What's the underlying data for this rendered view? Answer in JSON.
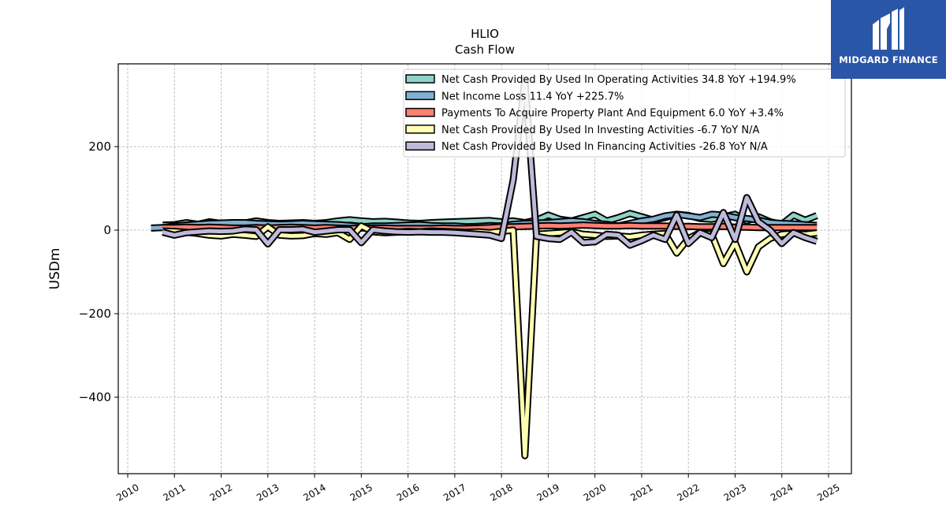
{
  "brand": {
    "name": "MIDGARD FINANCE",
    "bg_color": "#2a56a8"
  },
  "chart_data": {
    "type": "line",
    "title": "HLIO",
    "subtitle": "Cash Flow",
    "ylabel": "USDm",
    "xlabel": "",
    "xlim": [
      2010.0,
      2025.0
    ],
    "ylim": [
      -580,
      395
    ],
    "x_ticks": [
      "2010",
      "2011",
      "2012",
      "2013",
      "2014",
      "2015",
      "2016",
      "2017",
      "2018",
      "2019",
      "2020",
      "2021",
      "2022",
      "2023",
      "2024",
      "2025"
    ],
    "y_ticks": [
      200,
      0,
      -200,
      -400
    ],
    "y_tick_labels": [
      "200",
      "0",
      "−200",
      "−400"
    ],
    "grid": true,
    "legend_position": "top-right",
    "series": [
      {
        "name": "Net Cash Provided By Used In Operating Activities",
        "legend": "Net Cash Provided By Used In Operating Activities  34.8 YoY +194.9%",
        "color": "#8dd3c7",
        "x": [
          2010.75,
          2011.0,
          2011.25,
          2011.5,
          2011.75,
          2012.0,
          2012.25,
          2012.5,
          2012.75,
          2013.0,
          2013.25,
          2013.5,
          2013.75,
          2014.0,
          2014.25,
          2014.5,
          2014.75,
          2015.0,
          2015.25,
          2015.5,
          2015.75,
          2016.0,
          2016.25,
          2016.5,
          2016.75,
          2017.0,
          2017.25,
          2017.5,
          2017.75,
          2018.0,
          2018.25,
          2018.5,
          2018.75,
          2019.0,
          2019.25,
          2019.5,
          2019.75,
          2020.0,
          2020.25,
          2020.5,
          2020.75,
          2021.0,
          2021.25,
          2021.5,
          2021.75,
          2022.0,
          2022.25,
          2022.5,
          2022.75,
          2023.0,
          2023.25,
          2023.5,
          2023.75,
          2024.0,
          2024.25,
          2024.5,
          2024.75
        ],
        "values": [
          12,
          13,
          18,
          14,
          20,
          16,
          18,
          17,
          22,
          18,
          16,
          17,
          18,
          16,
          18,
          22,
          25,
          22,
          20,
          21,
          19,
          17,
          16,
          18,
          19,
          20,
          21,
          22,
          23,
          20,
          22,
          18,
          24,
          36,
          26,
          22,
          30,
          38,
          22,
          30,
          40,
          32,
          24,
          30,
          38,
          35,
          28,
          26,
          32,
          38,
          22,
          32,
          20,
          14,
          36,
          24,
          34.8
        ]
      },
      {
        "name": "Net Income Loss",
        "legend": "Net Income Loss  11.4 YoY +225.7%",
        "color": "#80b1d3",
        "x": [
          2010.5,
          2010.75,
          2011.0,
          2011.25,
          2011.5,
          2011.75,
          2012.0,
          2012.25,
          2012.5,
          2012.75,
          2013.0,
          2013.25,
          2013.5,
          2013.75,
          2014.0,
          2014.25,
          2014.5,
          2014.75,
          2015.0,
          2015.25,
          2015.5,
          2015.75,
          2016.0,
          2016.25,
          2016.5,
          2016.75,
          2017.0,
          2017.25,
          2017.5,
          2017.75,
          2018.0,
          2018.25,
          2018.5,
          2018.75,
          2019.0,
          2019.25,
          2019.5,
          2019.75,
          2020.0,
          2020.25,
          2020.5,
          2020.75,
          2021.0,
          2021.25,
          2021.5,
          2021.75,
          2022.0,
          2022.25,
          2022.5,
          2022.75,
          2023.0,
          2023.25,
          2023.5,
          2023.75,
          2024.0,
          2024.25,
          2024.5,
          2024.75
        ],
        "values": [
          5,
          6,
          10,
          12,
          14,
          16,
          17,
          18,
          18,
          16,
          15,
          14,
          15,
          16,
          15,
          14,
          13,
          11,
          8,
          10,
          10,
          11,
          12,
          13,
          11,
          10,
          10,
          8,
          9,
          11,
          10,
          14,
          16,
          17,
          18,
          20,
          22,
          20,
          16,
          14,
          10,
          16,
          22,
          26,
          34,
          38,
          34,
          30,
          38,
          36,
          30,
          28,
          24,
          18,
          16,
          15,
          13,
          11.4
        ]
      },
      {
        "name": "Payments To Acquire Property Plant And Equipment",
        "legend": "Payments To Acquire Property Plant And Equipment  6.0 YoY +3.4%",
        "color": "#fb8072",
        "x": [
          2010.75,
          2011.0,
          2011.25,
          2011.5,
          2011.75,
          2012.0,
          2012.25,
          2012.5,
          2012.75,
          2013.0,
          2013.25,
          2013.5,
          2013.75,
          2014.0,
          2014.25,
          2014.5,
          2014.75,
          2015.0,
          2015.25,
          2015.5,
          2015.75,
          2016.0,
          2016.25,
          2016.5,
          2016.75,
          2017.0,
          2017.25,
          2017.5,
          2017.75,
          2018.0,
          2018.25,
          2018.5,
          2018.75,
          2019.0,
          2019.25,
          2019.5,
          2019.75,
          2020.0,
          2020.25,
          2020.5,
          2020.75,
          2021.0,
          2021.25,
          2021.5,
          2021.75,
          2022.0,
          2022.25,
          2022.5,
          2022.75,
          2023.0,
          2023.25,
          2023.5,
          2023.75,
          2024.0,
          2024.25,
          2024.5,
          2024.75
        ],
        "values": [
          6,
          6,
          7,
          6,
          7,
          6,
          5,
          5,
          6,
          5,
          6,
          7,
          6,
          5,
          6,
          5,
          4,
          5,
          5,
          5,
          4,
          4,
          4,
          4,
          5,
          4,
          4,
          5,
          6,
          8,
          8,
          9,
          10,
          11,
          10,
          11,
          12,
          11,
          10,
          10,
          11,
          10,
          10,
          10,
          9,
          9,
          8,
          8,
          9,
          7,
          7,
          6,
          6,
          6,
          6,
          6,
          6.0
        ]
      },
      {
        "name": "Net Cash Provided By Used In Investing Activities",
        "legend": "Net Cash Provided By Used In Investing Activities  -6.7 YoY N/A",
        "color": "#ffffb3",
        "x": [
          2010.75,
          2011.0,
          2011.25,
          2011.5,
          2011.75,
          2012.0,
          2012.25,
          2012.5,
          2012.75,
          2013.0,
          2013.25,
          2013.5,
          2013.75,
          2014.0,
          2014.25,
          2014.5,
          2014.75,
          2015.0,
          2015.25,
          2015.5,
          2015.75,
          2016.0,
          2016.25,
          2016.5,
          2016.75,
          2017.0,
          2017.25,
          2017.5,
          2017.75,
          2018.0,
          2018.25,
          2018.5,
          2018.75,
          2019.0,
          2019.25,
          2019.5,
          2019.75,
          2020.0,
          2020.25,
          2020.5,
          2020.75,
          2021.0,
          2021.25,
          2021.5,
          2021.75,
          2022.0,
          2022.25,
          2022.5,
          2022.75,
          2023.0,
          2023.25,
          2023.5,
          2023.75,
          2024.0,
          2024.25,
          2024.5,
          2024.75
        ],
        "values": [
          -2,
          -3,
          -5,
          -8,
          -12,
          -14,
          -10,
          -12,
          -15,
          8,
          -12,
          -14,
          -13,
          -8,
          -10,
          -6,
          -22,
          10,
          -4,
          -6,
          -5,
          -3,
          -4,
          -2,
          -3,
          -4,
          -5,
          -4,
          -6,
          -3,
          0,
          -540,
          -10,
          -8,
          -6,
          -4,
          -10,
          -12,
          -15,
          -14,
          -16,
          -12,
          -10,
          -8,
          -55,
          -20,
          -6,
          -10,
          -80,
          -30,
          -100,
          -40,
          -20,
          -10,
          -8,
          -10,
          -6.7
        ]
      },
      {
        "name": "Net Cash Provided By Used In Financing Activities",
        "legend": "Net Cash Provided By Used In Financing Activities  -26.8 YoY N/A",
        "color": "#bebada",
        "x": [
          2010.75,
          2011.0,
          2011.25,
          2011.5,
          2011.75,
          2012.0,
          2012.25,
          2012.5,
          2012.75,
          2013.0,
          2013.25,
          2013.5,
          2013.75,
          2014.0,
          2014.25,
          2014.5,
          2014.75,
          2015.0,
          2015.25,
          2015.5,
          2015.75,
          2016.0,
          2016.25,
          2016.5,
          2016.75,
          2017.0,
          2017.25,
          2017.5,
          2017.75,
          2018.0,
          2018.25,
          2018.5,
          2018.75,
          2019.0,
          2019.25,
          2019.5,
          2019.75,
          2020.0,
          2020.25,
          2020.5,
          2020.75,
          2021.0,
          2021.25,
          2021.5,
          2021.75,
          2022.0,
          2022.25,
          2022.5,
          2022.75,
          2023.0,
          2023.25,
          2023.5,
          2023.75,
          2024.0,
          2024.25,
          2024.5,
          2024.75
        ],
        "values": [
          -5,
          -12,
          -6,
          -4,
          -2,
          -3,
          -2,
          2,
          1,
          -33,
          1,
          1,
          2,
          -5,
          -2,
          1,
          1,
          -30,
          1,
          -2,
          -4,
          -5,
          -4,
          -5,
          -5,
          -6,
          -8,
          -10,
          -12,
          -20,
          120,
          360,
          -15,
          -20,
          -22,
          -5,
          -30,
          -28,
          -10,
          -12,
          -36,
          -25,
          -12,
          -22,
          36,
          -32,
          -6,
          -18,
          42,
          -22,
          78,
          20,
          0,
          -32,
          -6,
          -18,
          -26.8
        ]
      }
    ]
  }
}
